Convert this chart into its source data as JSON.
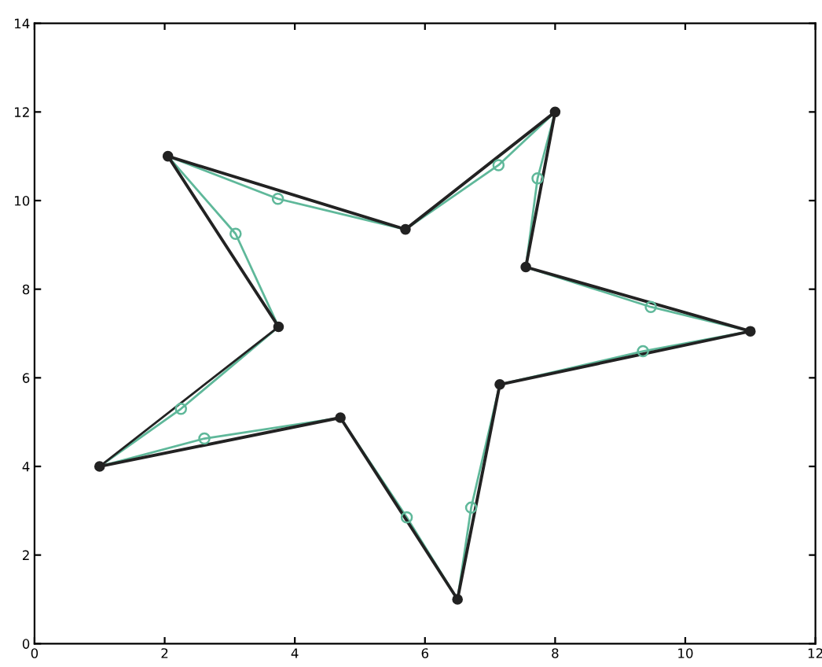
{
  "chart_data": {
    "type": "line",
    "xlim": [
      0,
      12
    ],
    "ylim": [
      0,
      14
    ],
    "xticks": [
      0,
      2,
      4,
      6,
      8,
      10,
      12
    ],
    "yticks": [
      0,
      2,
      4,
      6,
      8,
      10,
      12,
      14
    ],
    "grid": false,
    "legend": false,
    "series": [
      {
        "color": "#5fb89a",
        "marker": "none",
        "x": [
          1,
          2.25,
          3.75
        ],
        "values": [
          4,
          5.3,
          7.15
        ]
      },
      {
        "color": "#5fb89a",
        "marker": "none",
        "x": [
          3.75,
          3.09,
          2.05
        ],
        "values": [
          7.15,
          9.25,
          11
        ]
      },
      {
        "color": "#5fb89a",
        "marker": "none",
        "x": [
          2.05,
          3.74,
          5.7,
          7.13,
          8
        ],
        "values": [
          11,
          10.04,
          9.35,
          10.8,
          12
        ]
      },
      {
        "color": "#5fb89a",
        "marker": "none",
        "x": [
          8,
          7.73,
          7.55
        ],
        "values": [
          12,
          10.5,
          8.5
        ]
      },
      {
        "color": "#5fb89a",
        "marker": "none",
        "x": [
          7.55,
          9.47,
          11
        ],
        "values": [
          8.5,
          7.6,
          7.05
        ]
      },
      {
        "color": "#5fb89a",
        "marker": "none",
        "x": [
          11,
          9.35,
          7.15,
          6.71,
          6.5,
          5.72,
          4.7,
          2.61,
          1
        ],
        "values": [
          7.05,
          6.6,
          5.85,
          3.07,
          1,
          2.85,
          5.1,
          4.63,
          4
        ]
      },
      {
        "type": "scatter",
        "color": "#5fb89a",
        "marker": "circle",
        "x": [
          2.25,
          3.09,
          3.74,
          7.13,
          7.73,
          9.47,
          9.35,
          6.71,
          5.72,
          2.61
        ],
        "values": [
          5.3,
          9.25,
          10.04,
          10.8,
          10.5,
          7.6,
          6.6,
          3.07,
          2.85,
          4.63
        ]
      },
      {
        "color": "#222222",
        "marker": "none",
        "x": [
          1,
          3.75
        ],
        "values": [
          4,
          7.15
        ]
      },
      {
        "color": "#222222",
        "marker": "none",
        "x": [
          3.75,
          2.05
        ],
        "values": [
          7.15,
          11
        ]
      },
      {
        "color": "#222222",
        "marker": "none",
        "x": [
          2.05,
          5.7,
          8
        ],
        "values": [
          11,
          9.35,
          12
        ]
      },
      {
        "color": "#222222",
        "marker": "none",
        "x": [
          8,
          7.55
        ],
        "values": [
          12,
          8.5
        ]
      },
      {
        "color": "#222222",
        "marker": "none",
        "x": [
          7.55,
          11
        ],
        "values": [
          8.5,
          7.05
        ]
      },
      {
        "color": "#222222",
        "marker": "none",
        "x": [
          11,
          7.15,
          6.5,
          4.7,
          1
        ],
        "values": [
          7.05,
          5.85,
          1,
          5.1,
          4
        ]
      },
      {
        "type": "scatter",
        "color": "#222222",
        "marker": "circle",
        "x": [
          1,
          3.75,
          2.05,
          5.7,
          8,
          7.55,
          11,
          7.15,
          6.5,
          4.7
        ],
        "values": [
          4,
          7.15,
          11,
          9.35,
          12,
          8.5,
          7.05,
          5.85,
          1,
          5.1
        ]
      }
    ]
  }
}
